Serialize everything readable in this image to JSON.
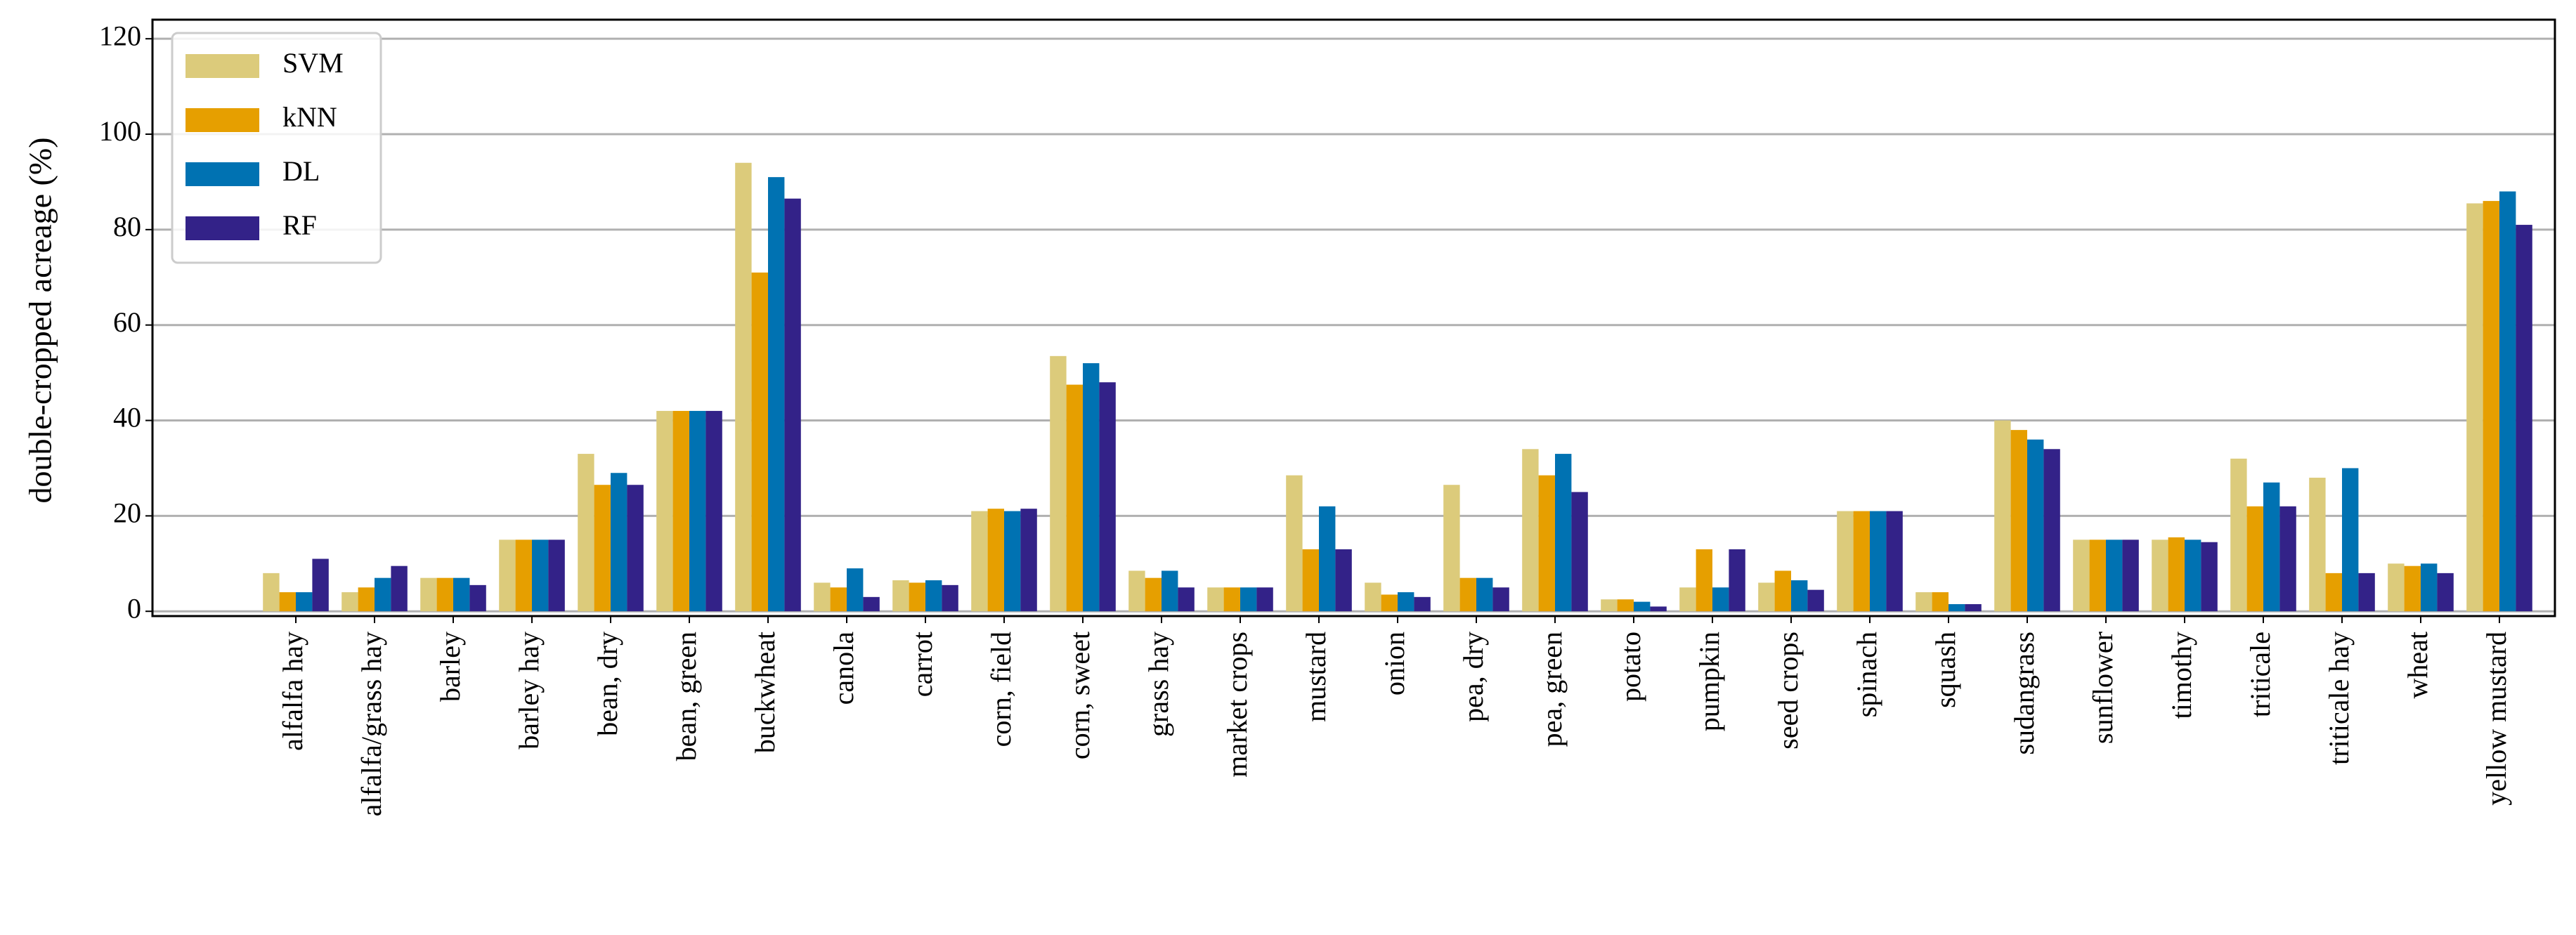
{
  "chart_data": {
    "type": "bar",
    "ylabel": "double-cropped acreage (%)",
    "categories": [
      "alfalfa hay",
      "alfalfa/grass hay",
      "barley",
      "barley hay",
      "bean, dry",
      "bean, green",
      "buckwheat",
      "canola",
      "carrot",
      "corn, field",
      "corn, sweet",
      "grass hay",
      "market crops",
      "mustard",
      "onion",
      "pea, dry",
      "pea, green",
      "potato",
      "pumpkin",
      "seed crops",
      "spinach",
      "squash",
      "sudangrass",
      "sunflower",
      "timothy",
      "triticale",
      "triticale hay",
      "wheat",
      "yellow mustard"
    ],
    "series": [
      {
        "name": "SVM",
        "color": "#dccb7b",
        "values": [
          8,
          4,
          7,
          15,
          33,
          42,
          94,
          6,
          6.5,
          21,
          53.5,
          8.5,
          5,
          28.5,
          6,
          26.5,
          34,
          2.5,
          5,
          6,
          21,
          4,
          40,
          15,
          15,
          32,
          28,
          10,
          85.5
        ]
      },
      {
        "name": "kNN",
        "color": "#e69f00",
        "values": [
          4,
          5,
          7,
          15,
          26.5,
          42,
          71,
          5,
          6,
          21.5,
          47.5,
          7,
          5,
          13,
          3.5,
          7,
          28.5,
          2.5,
          13,
          8.5,
          21,
          4,
          38,
          15,
          15.5,
          22,
          8,
          9.5,
          86
        ]
      },
      {
        "name": "DL",
        "color": "#0072b2",
        "values": [
          4,
          7,
          7,
          15,
          29,
          42,
          91,
          9,
          6.5,
          21,
          52,
          8.5,
          5,
          22,
          4,
          7,
          33,
          2,
          5,
          6.5,
          21,
          1.5,
          36,
          15,
          15,
          27,
          30,
          10,
          88
        ]
      },
      {
        "name": "RF",
        "color": "#332288",
        "values": [
          11,
          9.5,
          5.5,
          15,
          26.5,
          42,
          86.5,
          3,
          5.5,
          21.5,
          48,
          5,
          5,
          13,
          3,
          5,
          25,
          1,
          13,
          4.5,
          21,
          1.5,
          34,
          15,
          14.5,
          22,
          8,
          8,
          81
        ]
      }
    ],
    "ylim": [
      -1,
      124
    ],
    "yticks": [
      0,
      20,
      40,
      60,
      80,
      100,
      120
    ],
    "grid": true,
    "legend": "upper left"
  }
}
